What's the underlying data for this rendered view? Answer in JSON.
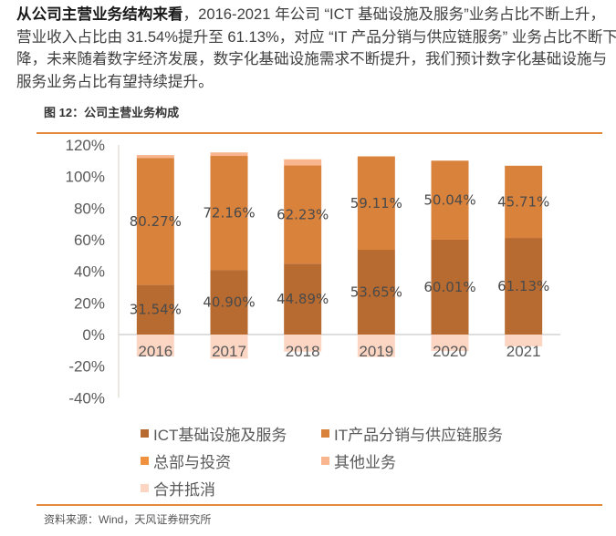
{
  "article": {
    "line1_bold": "从公司主营业务结构来看",
    "line1_rest": "，2016-2021 年公司 “ICT 基础设施及服务”业务占比不断上升，",
    "line2": "营业收入占比由 31.54%提升至 61.13%，对应 “IT 产品分销与供应链服务” 业务占比不断下",
    "line3": "降，未来随着数字经济发展，数字化基础设施需求不断提升，我们预计数字化基础设施与",
    "line4": "服务业务占比有望持续提升。"
  },
  "figure": {
    "caption": "图 12：公司主营业务构成",
    "source": "资料来源：Wind，天风证券研究所",
    "accent_color": "#E38A3D"
  },
  "chart_data": {
    "type": "bar",
    "stacked": true,
    "title": "公司主营业务构成",
    "xlabel": "",
    "ylabel": "",
    "categories": [
      "2016",
      "2017",
      "2018",
      "2019",
      "2020",
      "2021"
    ],
    "ylim": [
      -40,
      120
    ],
    "y_ticks": [
      {
        "value": 120,
        "label": "120%"
      },
      {
        "value": 100,
        "label": "100%"
      },
      {
        "value": 80,
        "label": "80%"
      },
      {
        "value": 60,
        "label": "60%"
      },
      {
        "value": 40,
        "label": "40%"
      },
      {
        "value": 20,
        "label": "20%"
      },
      {
        "value": 0,
        "label": "0%"
      },
      {
        "value": -20,
        "label": "-20%"
      },
      {
        "value": -40,
        "label": "-40%"
      }
    ],
    "grid": false,
    "legend_position": "bottom",
    "series": [
      {
        "name": "ICT基础设施及服务",
        "color": "#B86B30",
        "values": [
          31.54,
          40.9,
          44.89,
          53.65,
          60.01,
          61.13
        ],
        "labels": [
          "31.54%",
          "40.90%",
          "44.89%",
          "53.65%",
          "60.01%",
          "61.13%"
        ]
      },
      {
        "name": "IT产品分销与供应链服务",
        "color": "#D9823C",
        "values": [
          80.27,
          72.16,
          62.23,
          59.11,
          50.04,
          45.71
        ],
        "labels": [
          "80.27%",
          "72.16%",
          "62.23%",
          "59.11%",
          "50.04%",
          "45.71%"
        ]
      },
      {
        "name": "总部与投资",
        "color": "#F0913F",
        "values": [
          0,
          0,
          0,
          0,
          0,
          0
        ]
      },
      {
        "name": "其他业务",
        "color": "#F8B58E",
        "values": [
          1.8,
          2.2,
          3.8,
          0,
          0,
          0
        ]
      },
      {
        "name": "合并抵消",
        "color": "#FCD5C3",
        "values": [
          -13.8,
          -15.2,
          -10.8,
          -14.2,
          -10.4,
          -7.5
        ]
      }
    ]
  }
}
